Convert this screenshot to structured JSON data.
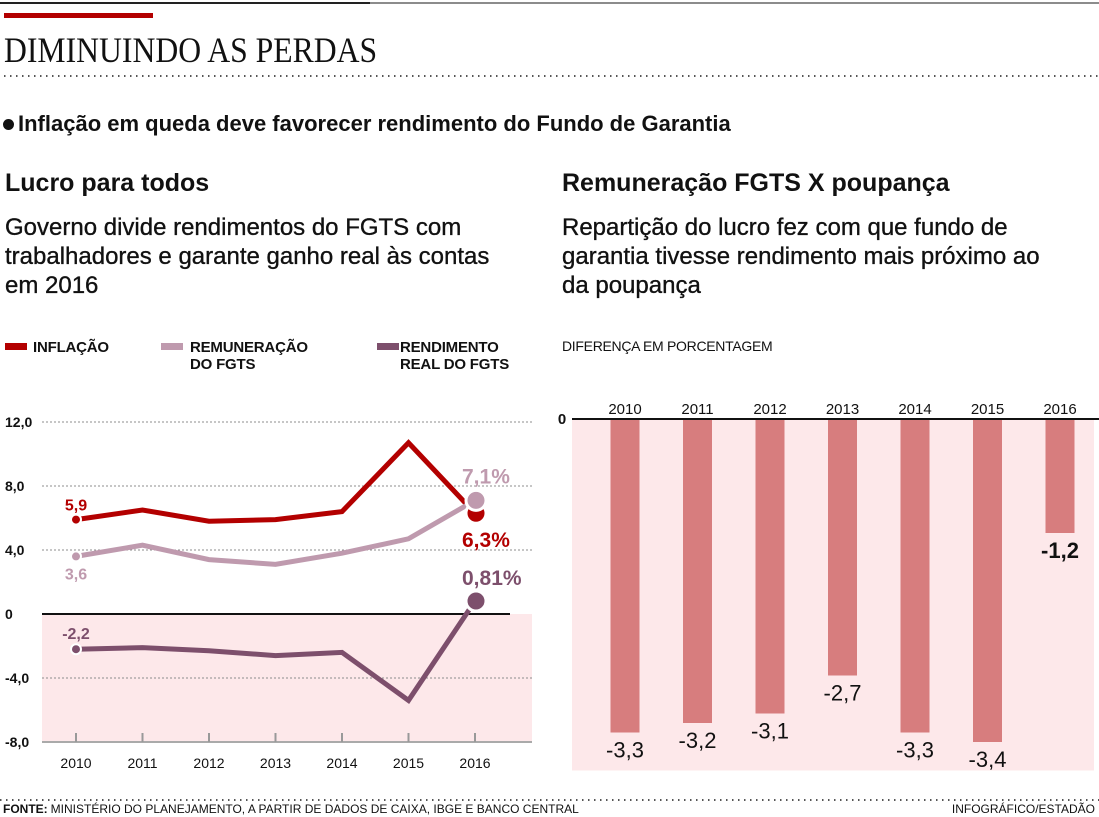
{
  "header": {
    "title": "DIMINUINDO AS PERDAS",
    "subtitle": "Inflação em queda deve favorecer rendimento do Fundo de Garantia",
    "bullet_icon": "filled-circle"
  },
  "colors": {
    "accent_red": "#b30000",
    "shade_pink": "#fde8ea",
    "bar_pink": "#d77d7e",
    "text": "#111111",
    "grid": "#8c8c8c"
  },
  "left_panel": {
    "heading": "Lucro para todos",
    "description_lines": [
      "Governo divide rendimentos do FGTS com",
      "trabalhadores e garante ganho real às contas",
      "em 2016"
    ]
  },
  "right_panel": {
    "heading": "Remuneração FGTS X poupança",
    "description_lines": [
      "Repartição do lucro fez com que fundo de",
      "garantia tivesse rendimento mais próximo ao",
      "da poupança"
    ]
  },
  "footer": {
    "source_label": "FONTE:",
    "source_text": "MINISTÉRIO DO PLANEJAMENTO, A PARTIR DE DADOS DE CAIXA, IBGE E BANCO CENTRAL",
    "credit": "INFOGRÁFICO/ESTADÃO"
  },
  "chart_data": [
    {
      "type": "line",
      "title": "Lucro para todos",
      "x": [
        "2010",
        "2011",
        "2012",
        "2013",
        "2014",
        "2015",
        "2016"
      ],
      "xlabel": "",
      "ylabel": "",
      "ylim": [
        -8,
        12
      ],
      "yticks": [
        12,
        8,
        4,
        0,
        -4,
        -8
      ],
      "ytick_labels": [
        "12,0",
        "8,0",
        "4,0",
        "0",
        "-4,0",
        "-8,0"
      ],
      "grid": true,
      "negative_region_shaded": true,
      "legend_position": "top",
      "series": [
        {
          "name": "Inflação",
          "legend_lines": [
            "INFLAÇÃO"
          ],
          "color": "#b30000",
          "values": [
            5.9,
            6.5,
            5.8,
            5.9,
            6.4,
            10.7,
            6.3
          ],
          "start_label": "5,9",
          "end_label": "6,3%"
        },
        {
          "name": "Remuneração do FGTS",
          "legend_lines": [
            "REMUNERAÇÃO",
            "DO FGTS"
          ],
          "color": "#bf9aae",
          "values": [
            3.6,
            4.3,
            3.4,
            3.1,
            3.8,
            4.7,
            7.1
          ],
          "start_label": "3,6",
          "end_label": "7,1%"
        },
        {
          "name": "Rendimento real do FGTS",
          "legend_lines": [
            "RENDIMENTO",
            "REAL DO FGTS"
          ],
          "color": "#7d4f6c",
          "values": [
            -2.2,
            -2.1,
            -2.3,
            -2.6,
            -2.4,
            -5.4,
            0.81
          ],
          "start_label": "-2,2",
          "end_label": "0,81%"
        }
      ]
    },
    {
      "type": "bar",
      "title": "Remuneração FGTS X poupança",
      "ylabel": "DIFERENÇA EM PORCENTAGEM",
      "categories": [
        "2010",
        "2011",
        "2012",
        "2013",
        "2014",
        "2015",
        "2016"
      ],
      "values": [
        -3.3,
        -3.2,
        -3.1,
        -2.7,
        -3.3,
        -3.4,
        -1.2
      ],
      "value_labels": [
        "-3,3",
        "-3,2",
        "-3,1",
        "-2,7",
        "-3,3",
        "-3,4",
        "-1,2"
      ],
      "zero_label": "0",
      "ylim": [
        -3.7,
        0
      ],
      "color": "#d77d7e",
      "grid": false
    }
  ]
}
